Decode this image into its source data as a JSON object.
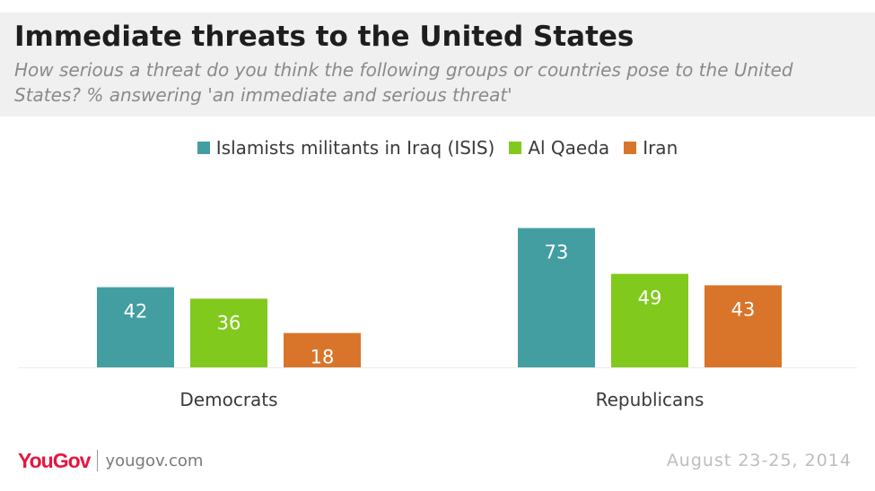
{
  "header": {
    "title": "Immediate threats to the United States",
    "subtitle": "How serious a threat do you think the following groups or countries pose to the United States? % answering 'an immediate and serious threat'"
  },
  "legend": [
    {
      "label": "Islamists militants in Iraq (ISIS)",
      "color": "#439ea1"
    },
    {
      "label": "Al Qaeda",
      "color": "#82c91e"
    },
    {
      "label": "Iran",
      "color": "#d9752a"
    }
  ],
  "chart_data": {
    "type": "bar",
    "categories": [
      "Democrats",
      "Republicans"
    ],
    "series": [
      {
        "name": "Islamists militants in Iraq (ISIS)",
        "color": "#439ea1",
        "values": [
          42,
          73
        ]
      },
      {
        "name": "Al Qaeda",
        "color": "#82c91e",
        "values": [
          36,
          49
        ]
      },
      {
        "name": "Iran",
        "color": "#d9752a",
        "values": [
          18,
          43
        ]
      }
    ],
    "ylim": [
      0,
      80
    ],
    "grid": false,
    "legend_position": "top",
    "data_labels": true
  },
  "footer": {
    "logo": "YouGov",
    "url": "yougov.com",
    "date": "August 23-25, 2014"
  }
}
